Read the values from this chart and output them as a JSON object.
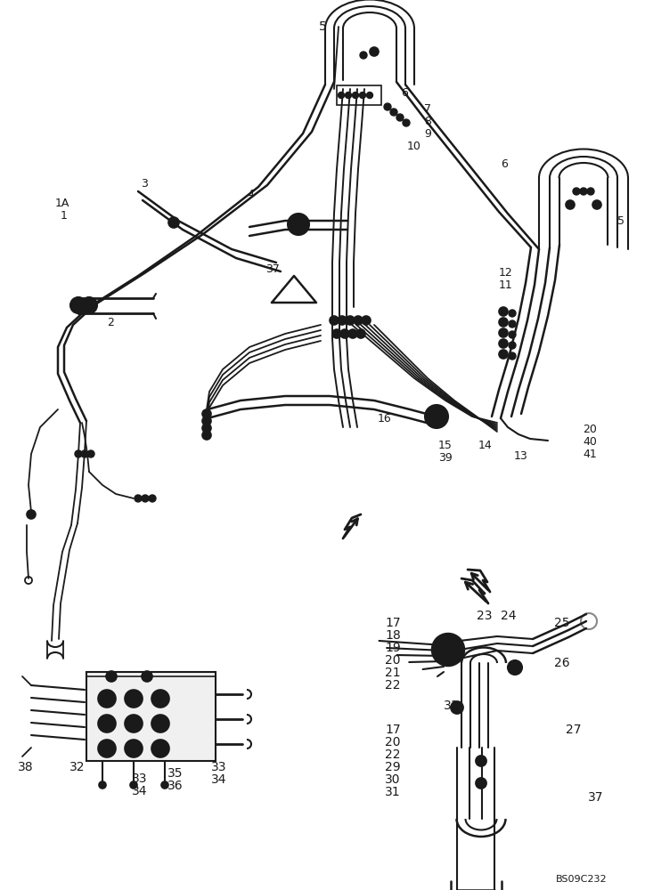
{
  "background_color": "#ffffff",
  "line_color": "#1a1a1a",
  "fig_width": 7.24,
  "fig_height": 10.0,
  "dpi": 100,
  "watermark": "BS09C232",
  "labels_top": [
    [
      "5",
      358,
      30,
      10
    ],
    [
      "6",
      450,
      105,
      9
    ],
    [
      "7",
      476,
      122,
      9
    ],
    [
      "8",
      476,
      136,
      9
    ],
    [
      "9",
      476,
      150,
      9
    ],
    [
      "10",
      457,
      165,
      9
    ],
    [
      "6",
      562,
      185,
      9
    ],
    [
      "5",
      693,
      248,
      9
    ],
    [
      "1A",
      62,
      228,
      9
    ],
    [
      "1",
      68,
      243,
      9
    ],
    [
      "2",
      120,
      362,
      9
    ],
    [
      "3",
      158,
      207,
      9
    ],
    [
      "4",
      277,
      218,
      9
    ],
    [
      "37",
      298,
      302,
      9
    ],
    [
      "12",
      560,
      307,
      9
    ],
    [
      "11",
      560,
      321,
      9
    ],
    [
      "16",
      424,
      470,
      9
    ],
    [
      "15",
      492,
      500,
      9
    ],
    [
      "39",
      492,
      514,
      9
    ],
    [
      "14",
      537,
      500,
      9
    ],
    [
      "13",
      577,
      513,
      9
    ],
    [
      "20",
      654,
      483,
      9
    ],
    [
      "40",
      654,
      497,
      9
    ],
    [
      "41",
      654,
      511,
      9
    ]
  ],
  "labels_bot_left": [
    [
      "38",
      20,
      862,
      10
    ],
    [
      "32",
      78,
      862,
      10
    ],
    [
      "33",
      148,
      875,
      10
    ],
    [
      "34",
      148,
      889,
      10
    ],
    [
      "35",
      188,
      869,
      10
    ],
    [
      "36",
      188,
      883,
      10
    ],
    [
      "33",
      237,
      862,
      10
    ],
    [
      "34",
      237,
      876,
      10
    ]
  ],
  "labels_bot_right": [
    [
      "17",
      432,
      700,
      10
    ],
    [
      "18",
      432,
      714,
      10
    ],
    [
      "19",
      432,
      728,
      10
    ],
    [
      "20",
      432,
      742,
      10
    ],
    [
      "21",
      432,
      756,
      10
    ],
    [
      "22",
      432,
      770,
      10
    ],
    [
      "23",
      535,
      692,
      10
    ],
    [
      "24",
      562,
      692,
      10
    ],
    [
      "25",
      622,
      700,
      10
    ],
    [
      "26",
      622,
      745,
      10
    ],
    [
      "31",
      498,
      793,
      10
    ],
    [
      "17",
      432,
      820,
      10
    ],
    [
      "20",
      432,
      834,
      10
    ],
    [
      "22",
      432,
      848,
      10
    ],
    [
      "29",
      432,
      862,
      10
    ],
    [
      "30",
      432,
      876,
      10
    ],
    [
      "31",
      432,
      890,
      10
    ],
    [
      "27",
      635,
      820,
      10
    ],
    [
      "37",
      660,
      896,
      10
    ]
  ]
}
